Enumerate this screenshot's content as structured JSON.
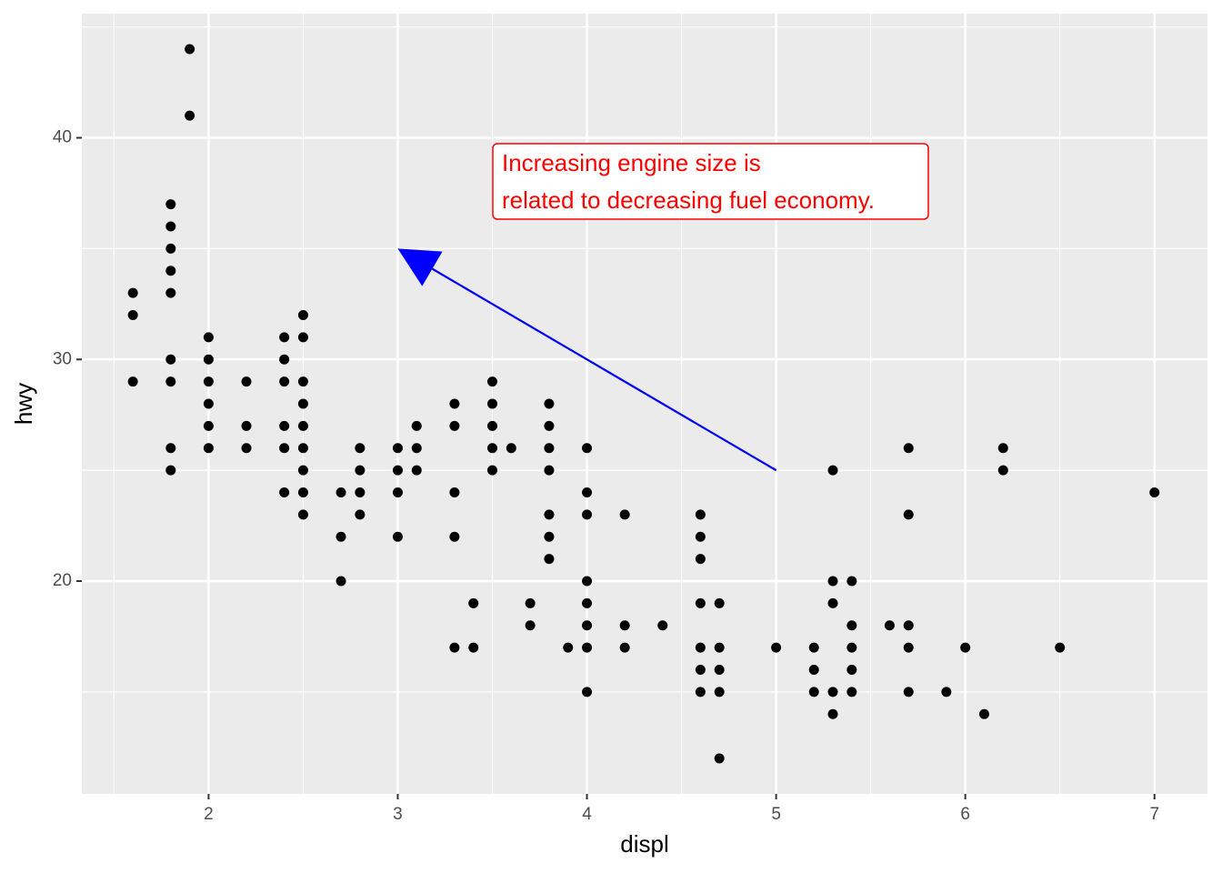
{
  "chart_data": {
    "type": "scatter",
    "x_label": "displ",
    "y_label": "hwy",
    "xlim": [
      1.33,
      7.28
    ],
    "ylim": [
      10.4,
      45.6
    ],
    "xticks": [
      2,
      3,
      4,
      5,
      6,
      7
    ],
    "yticks": [
      20,
      30,
      40
    ],
    "grid": true,
    "color": "#000000",
    "x": [
      1.6,
      1.6,
      1.6,
      1.8,
      1.8,
      1.8,
      1.8,
      1.8,
      1.8,
      1.8,
      1.8,
      1.8,
      1.9,
      1.9,
      2.0,
      2.0,
      2.0,
      2.0,
      2.0,
      2.0,
      2.2,
      2.2,
      2.2,
      2.4,
      2.4,
      2.4,
      2.4,
      2.4,
      2.4,
      2.5,
      2.5,
      2.5,
      2.5,
      2.5,
      2.5,
      2.5,
      2.5,
      2.5,
      2.7,
      2.7,
      2.7,
      2.8,
      2.8,
      2.8,
      2.8,
      3.0,
      3.0,
      3.0,
      3.0,
      3.1,
      3.1,
      3.1,
      3.3,
      3.3,
      3.3,
      3.3,
      3.3,
      3.4,
      3.4,
      3.5,
      3.5,
      3.5,
      3.5,
      3.5,
      3.6,
      3.7,
      3.7,
      3.8,
      3.8,
      3.8,
      3.8,
      3.8,
      3.8,
      3.8,
      3.9,
      4.0,
      4.0,
      4.0,
      4.0,
      4.0,
      4.0,
      4.0,
      4.0,
      4.2,
      4.2,
      4.2,
      4.4,
      4.6,
      4.6,
      4.6,
      4.6,
      4.6,
      4.6,
      4.6,
      4.7,
      4.7,
      4.7,
      4.7,
      4.7,
      5.0,
      5.2,
      5.2,
      5.2,
      5.3,
      5.3,
      5.3,
      5.3,
      5.3,
      5.4,
      5.4,
      5.4,
      5.4,
      5.4,
      5.6,
      5.7,
      5.7,
      5.7,
      5.7,
      5.7,
      5.9,
      6.0,
      6.1,
      6.2,
      6.2,
      6.5,
      7.0
    ],
    "values": [
      33,
      32,
      29,
      37,
      36,
      35,
      34,
      33,
      30,
      29,
      26,
      25,
      44,
      41,
      31,
      30,
      29,
      28,
      27,
      26,
      29,
      27,
      26,
      31,
      30,
      29,
      27,
      26,
      24,
      32,
      31,
      29,
      28,
      27,
      26,
      25,
      24,
      23,
      24,
      22,
      20,
      26,
      25,
      24,
      23,
      26,
      25,
      24,
      22,
      27,
      26,
      25,
      28,
      27,
      24,
      22,
      17,
      19,
      17,
      29,
      28,
      27,
      26,
      25,
      26,
      19,
      18,
      28,
      27,
      26,
      25,
      23,
      22,
      21,
      17,
      26,
      24,
      23,
      20,
      19,
      18,
      17,
      15,
      23,
      18,
      17,
      18,
      23,
      22,
      21,
      19,
      17,
      16,
      15,
      19,
      17,
      16,
      15,
      12,
      17,
      17,
      16,
      15,
      25,
      20,
      19,
      15,
      14,
      20,
      18,
      17,
      16,
      15,
      18,
      26,
      23,
      18,
      17,
      15,
      15,
      17,
      14,
      26,
      25,
      17,
      24
    ],
    "annotation": {
      "text": [
        "Increasing engine size is",
        "related to decreasing fuel economy."
      ],
      "color": "#ff0000",
      "arrow": {
        "x": [
          5,
          3
        ],
        "y": [
          25,
          35
        ],
        "color": "#0000ff"
      }
    }
  }
}
